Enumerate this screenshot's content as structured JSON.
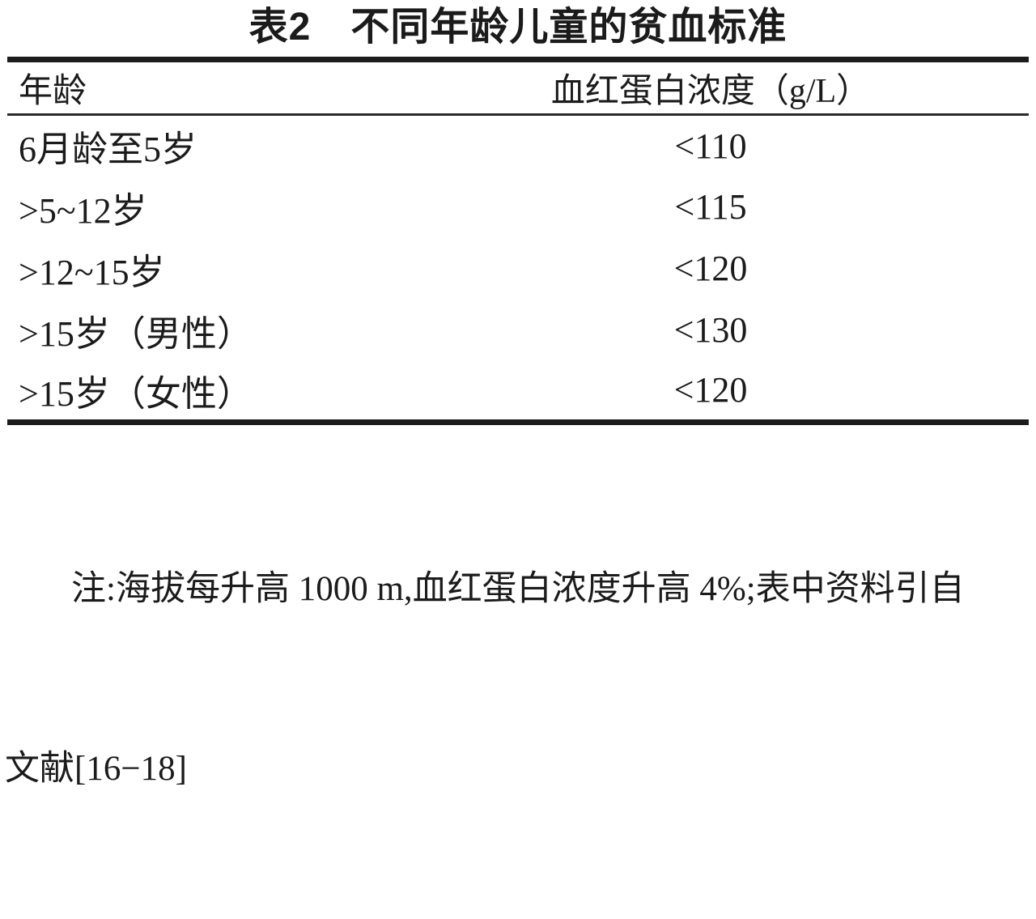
{
  "page": {
    "background": "#ffffff",
    "text_color": "#1b1b1b",
    "rule_color": "#1c1c1c"
  },
  "caption": "表2　不同年龄儿童的贫血标准",
  "table": {
    "columns": [
      "年龄",
      "血红蛋白浓度（g/L）"
    ],
    "rows": [
      {
        "age": "6月龄至5岁",
        "hb": "<110"
      },
      {
        "age": ">5~12岁",
        "hb": "<115"
      },
      {
        "age": ">12~15岁",
        "hb": "<120"
      },
      {
        "age": ">15岁（男性）",
        "hb": "<130"
      },
      {
        "age": ">15岁（女性）",
        "hb": "<120"
      }
    ]
  },
  "note": {
    "line1": "注:海拔每升高 1000 m,血红蛋白浓度升高 4%;表中资料引自",
    "line2": "文献[16−18]"
  },
  "chart_data": {
    "type": "table",
    "title": "表2　不同年龄儿童的贫血标准",
    "columns": [
      "年龄",
      "血红蛋白浓度（g/L）"
    ],
    "rows": [
      [
        "6月龄至5岁",
        "<110"
      ],
      [
        ">5~12岁",
        "<115"
      ],
      [
        ">12~15岁",
        "<120"
      ],
      [
        ">15岁（男性）",
        "<130"
      ],
      [
        ">15岁（女性）",
        "<120"
      ]
    ],
    "note": "注:海拔每升高 1000 m,血红蛋白浓度升高 4%;表中资料引自文献[16−18]"
  }
}
